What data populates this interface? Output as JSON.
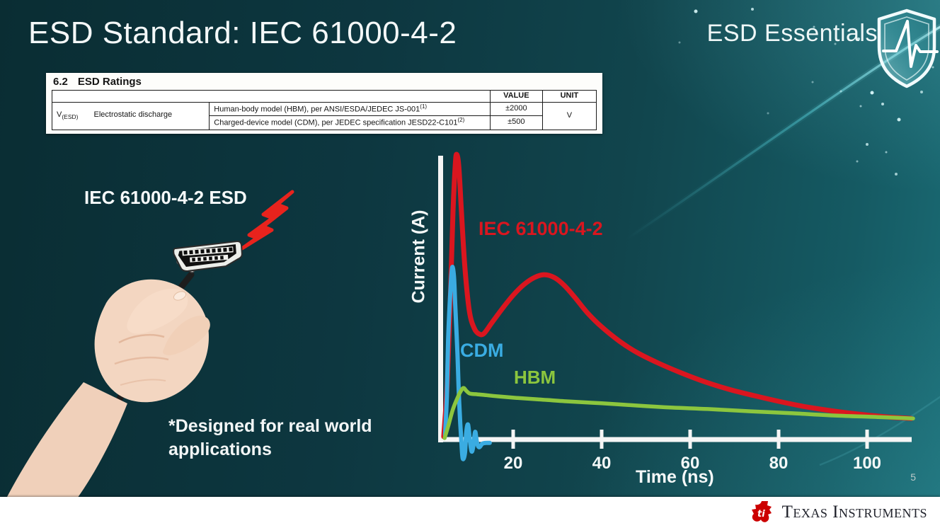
{
  "slide": {
    "title": "ESD Standard: IEC 61000-4-2",
    "brand": "ESD Essentials",
    "page_number": "5"
  },
  "ratings_table": {
    "section": "6.2",
    "section_title": "ESD Ratings",
    "col_value": "VALUE",
    "col_unit": "UNIT",
    "param_symbol": "V",
    "param_symbol_sub": "(ESD)",
    "param_name": "Electrostatic discharge",
    "rows": [
      {
        "desc": "Human-body model (HBM), per ANSI/ESDA/JEDEC JS-001",
        "sup": "(1)",
        "value": "±2000"
      },
      {
        "desc": "Charged-device model (CDM), per JEDEC specification JESD22-C101",
        "sup": "(2)",
        "value": "±500"
      }
    ],
    "unit": "V"
  },
  "illustration": {
    "label": "IEC 61000-4-2 ESD",
    "note": "*Designed for real world\napplications"
  },
  "chart_data": {
    "type": "line",
    "title": "",
    "xlabel": "Time (ns)",
    "ylabel": "Current (A)",
    "x_ticks": [
      20,
      40,
      60,
      80,
      100
    ],
    "xlim": [
      0,
      110
    ],
    "ylim_relative": [
      -0.1,
      1.05
    ],
    "grid": false,
    "legend_position": "inline-labels",
    "series": [
      {
        "name": "IEC 61000-4-2",
        "color": "#da161f",
        "points_t_amp": [
          [
            4.3,
            0.01
          ],
          [
            5.1,
            0.2
          ],
          [
            5.8,
            0.5
          ],
          [
            6.4,
            0.8
          ],
          [
            6.9,
            0.96
          ],
          [
            7.2,
            1.0
          ],
          [
            7.7,
            0.96
          ],
          [
            8.3,
            0.8
          ],
          [
            9.1,
            0.6
          ],
          [
            10.1,
            0.45
          ],
          [
            11.2,
            0.39
          ],
          [
            12.3,
            0.37
          ],
          [
            13.4,
            0.372
          ],
          [
            15.2,
            0.41
          ],
          [
            17.6,
            0.46
          ],
          [
            20,
            0.506
          ],
          [
            22.4,
            0.543
          ],
          [
            24.8,
            0.568
          ],
          [
            27,
            0.578
          ],
          [
            29.3,
            0.568
          ],
          [
            31.5,
            0.541
          ],
          [
            33.9,
            0.499
          ],
          [
            36.8,
            0.444
          ],
          [
            40,
            0.395
          ],
          [
            44,
            0.345
          ],
          [
            48,
            0.305
          ],
          [
            52.8,
            0.268
          ],
          [
            57.6,
            0.236
          ],
          [
            63.2,
            0.203
          ],
          [
            68.8,
            0.176
          ],
          [
            74.4,
            0.154
          ],
          [
            80,
            0.134
          ],
          [
            86.4,
            0.114
          ],
          [
            92.8,
            0.099
          ],
          [
            99.2,
            0.087
          ],
          [
            104.8,
            0.079
          ],
          [
            110,
            0.074
          ]
        ]
      },
      {
        "name": "CDM",
        "color": "#3aace2",
        "points_t_amp": [
          [
            4.6,
            0.015
          ],
          [
            5.0,
            0.15
          ],
          [
            5.3,
            0.35
          ],
          [
            5.8,
            0.52
          ],
          [
            6.2,
            0.603
          ],
          [
            6.6,
            0.573
          ],
          [
            6.9,
            0.474
          ],
          [
            7.4,
            0.3
          ],
          [
            7.8,
            0.127
          ],
          [
            8.3,
            -0.01
          ],
          [
            8.6,
            -0.067
          ],
          [
            9.1,
            -0.047
          ],
          [
            9.4,
            0.027
          ],
          [
            9.8,
            0.052
          ],
          [
            10.2,
            -0.002
          ],
          [
            10.6,
            -0.042
          ],
          [
            11.0,
            -0.022
          ],
          [
            11.4,
            0.027
          ],
          [
            11.8,
            -0.01
          ],
          [
            12.3,
            -0.027
          ],
          [
            13.0,
            -0.015
          ],
          [
            13.8,
            -0.012
          ],
          [
            14.7,
            -0.012
          ]
        ]
      },
      {
        "name": "HBM",
        "color": "#8cc63e",
        "points_t_amp": [
          [
            4.5,
            0.005
          ],
          [
            5.4,
            0.052
          ],
          [
            6.4,
            0.107
          ],
          [
            7.4,
            0.146
          ],
          [
            8.2,
            0.171
          ],
          [
            8.8,
            0.181
          ],
          [
            9.4,
            0.171
          ],
          [
            10.2,
            0.161
          ],
          [
            11.5,
            0.159
          ],
          [
            13.6,
            0.156
          ],
          [
            16.8,
            0.151
          ],
          [
            20.8,
            0.146
          ],
          [
            25.6,
            0.141
          ],
          [
            32,
            0.134
          ],
          [
            40,
            0.127
          ],
          [
            48,
            0.119
          ],
          [
            56,
            0.112
          ],
          [
            64,
            0.107
          ],
          [
            73.6,
            0.099
          ],
          [
            83.2,
            0.092
          ],
          [
            92.8,
            0.084
          ],
          [
            102.4,
            0.079
          ],
          [
            110.4,
            0.074
          ]
        ]
      }
    ]
  },
  "footer": {
    "brand": "Texas Instruments"
  },
  "colors": {
    "background_dark": "#0a2d33",
    "background_light": "#1a6b74",
    "accent_red": "#da161f",
    "accent_cyan": "#3aace2",
    "accent_green": "#8cc63e",
    "axis_white": "#f5f5f5",
    "ti_red": "#cc0000"
  }
}
